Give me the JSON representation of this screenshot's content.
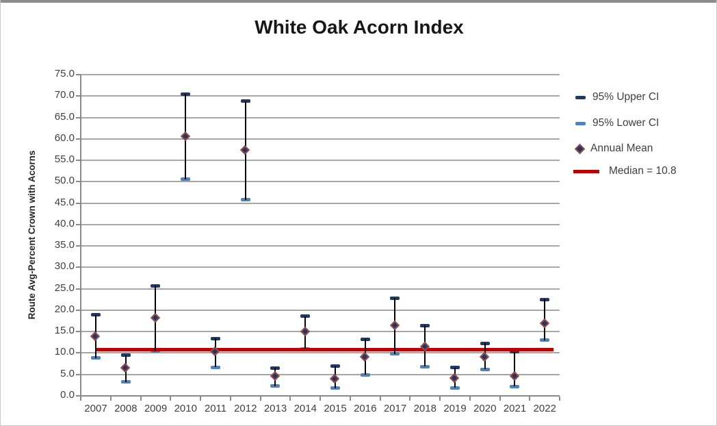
{
  "chart_data": {
    "type": "scatter",
    "title": "White Oak Acorn Index",
    "xlabel": "",
    "ylabel": "Route Avg-Percent Crown with Acorns",
    "ylim": [
      0.0,
      75.0
    ],
    "ytick_step": 5.0,
    "grid": "horizontal",
    "legend_position": "right",
    "categories": [
      "2007",
      "2008",
      "2009",
      "2010",
      "2011",
      "2012",
      "2013",
      "2014",
      "2015",
      "2016",
      "2017",
      "2018",
      "2019",
      "2020",
      "2021",
      "2022"
    ],
    "series": [
      {
        "name": "95% Upper CI",
        "marker": "dash",
        "color": "#1f3864",
        "values": [
          18.9,
          9.5,
          25.7,
          70.5,
          13.4,
          68.8,
          6.5,
          18.6,
          6.9,
          13.2,
          22.8,
          16.4,
          6.6,
          12.3,
          10.3,
          22.5
        ]
      },
      {
        "name": "95% Lower CI",
        "marker": "dash",
        "color": "#4f81bd",
        "values": [
          8.8,
          3.2,
          10.4,
          50.6,
          6.7,
          45.8,
          2.3,
          11.0,
          1.8,
          4.9,
          9.8,
          6.8,
          1.9,
          6.2,
          2.2,
          13.0
        ]
      },
      {
        "name": "Annual Mean",
        "marker": "diamond",
        "color": "#1f3864",
        "edge_color": "#9e4b47",
        "values": [
          13.9,
          6.4,
          18.1,
          60.6,
          10.3,
          57.4,
          4.6,
          14.9,
          3.9,
          9.1,
          16.4,
          11.5,
          4.1,
          9.0,
          4.6,
          16.9
        ]
      },
      {
        "name": "Median = 10.8",
        "marker": "line",
        "color": "#c00000",
        "value": 10.8
      }
    ],
    "error_bar_color": "#000000",
    "median": 10.8
  },
  "colors": {
    "gridline": "#a6a6a6",
    "axis": "#898989",
    "tick_text": "#3f3f3f",
    "title_text": "#171717",
    "median_red": "#c00000",
    "upper_ci_navy": "#1f3864",
    "lower_ci_blue": "#4f81bd",
    "diamond_edge": "#9e4b47"
  }
}
